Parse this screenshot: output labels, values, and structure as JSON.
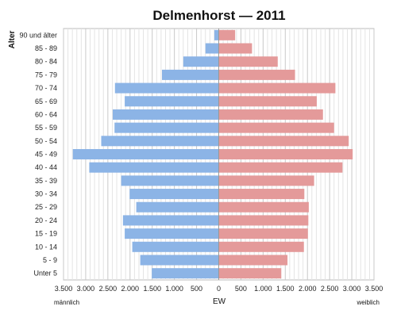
{
  "chart_data": {
    "type": "bar",
    "orientation": "horizontal",
    "title": "Delmenhorst — 2011",
    "ylabel": "Alter",
    "xlabel": "EW",
    "left_label": "männlich",
    "right_label": "weiblich",
    "categories": [
      "90 und älter",
      "85 - 89",
      "80 - 84",
      "75 - 79",
      "70 - 74",
      "65 - 69",
      "60 - 64",
      "55 - 59",
      "50 - 54",
      "45 - 49",
      "40 - 44",
      "35 - 39",
      "30 - 34",
      "25 - 29",
      "20 - 24",
      "15 - 19",
      "10 - 14",
      "5 - 9",
      "Unter 5"
    ],
    "series": [
      {
        "name": "männlich",
        "color": "#8cb4e6",
        "values": [
          100,
          300,
          800,
          1280,
          2340,
          2120,
          2390,
          2350,
          2650,
          3290,
          2920,
          2200,
          2010,
          1860,
          2160,
          2120,
          1950,
          1770,
          1510
        ]
      },
      {
        "name": "weiblich",
        "color": "#e49a9a",
        "values": [
          370,
          750,
          1330,
          1720,
          2630,
          2210,
          2350,
          2600,
          2930,
          3020,
          2790,
          2150,
          1930,
          2030,
          2020,
          2010,
          1920,
          1550,
          1410
        ]
      }
    ],
    "xlim": [
      -3500,
      3500
    ],
    "xticks": [
      "3.500",
      "3.000",
      "2.500",
      "2.000",
      "1.500",
      "1.000",
      "500",
      "0",
      "500",
      "1.000",
      "1.500",
      "2.000",
      "2.500",
      "3.000",
      "3.500"
    ],
    "grid": true
  }
}
